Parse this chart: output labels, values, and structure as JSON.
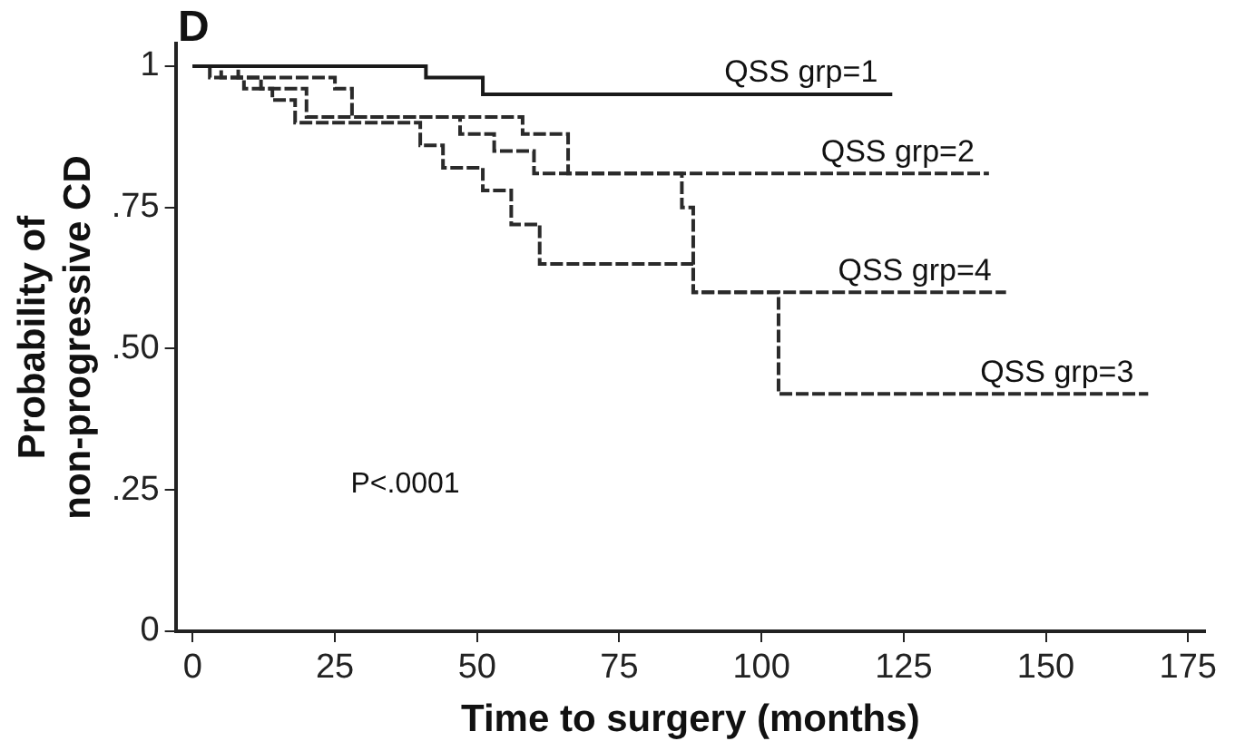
{
  "chart_data": {
    "type": "step",
    "title": "D",
    "xlabel": "Time to surgery (months)",
    "ylabel": "Probability of\nnon-progressive CD",
    "xlim": [
      -3,
      178
    ],
    "xticks": [
      0,
      25,
      50,
      75,
      100,
      125,
      150,
      175
    ],
    "ylim": [
      0,
      1.04
    ],
    "yticks": [
      0,
      {
        "value": 0.25,
        "label": ".25"
      },
      {
        "value": 0.5,
        "label": ".50"
      },
      {
        "value": 0.75,
        "label": ".75"
      },
      1
    ],
    "grid": false,
    "legend": false,
    "marker": "none",
    "annotations": [
      "P<.0001"
    ],
    "series": [
      {
        "name": "QSS grp=1",
        "color": "#1a1a1a",
        "line_style": "solid",
        "x": [
          0,
          41,
          51,
          123
        ],
        "values": [
          1,
          0.98,
          0.95,
          0.95
        ]
      },
      {
        "name": "QSS grp=2",
        "color": "#2a2a2a",
        "line_style": "dashed",
        "x": [
          0,
          8,
          25,
          28,
          58,
          66,
          140
        ],
        "values": [
          1,
          0.98,
          0.96,
          0.91,
          0.88,
          0.81,
          0.81
        ]
      },
      {
        "name": "QSS grp=4",
        "color": "#2a2a2a",
        "line_style": "dashed",
        "x": [
          0,
          5,
          12,
          20,
          47,
          53,
          60,
          86,
          88,
          143
        ],
        "values": [
          1,
          0.98,
          0.96,
          0.91,
          0.88,
          0.85,
          0.81,
          0.75,
          0.6,
          0.6
        ]
      },
      {
        "name": "QSS grp=3",
        "color": "#2a2a2a",
        "line_style": "dashed",
        "x": [
          0,
          3,
          9,
          14,
          18,
          35,
          40,
          44,
          51,
          56,
          61,
          88,
          103,
          168
        ],
        "values": [
          1,
          0.98,
          0.96,
          0.94,
          0.9,
          0.9,
          0.86,
          0.82,
          0.78,
          0.72,
          0.65,
          0.6,
          0.42,
          0.42
        ]
      }
    ]
  }
}
